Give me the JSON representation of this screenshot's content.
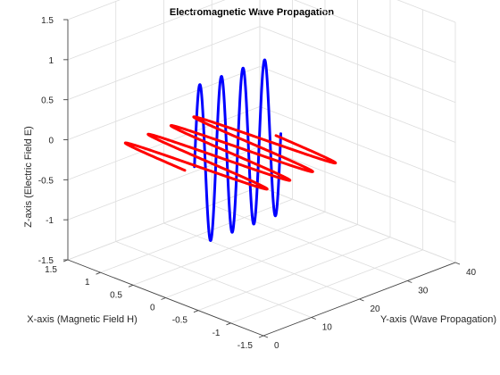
{
  "chart_data": {
    "type": "line",
    "projection": "3d",
    "title": "Electromagnetic Wave Propagation",
    "xlabel": "X-axis (Magnetic Field H)",
    "ylabel": "Y-axis (Wave Propagation)",
    "zlabel": "Z-axis (Electric Field E)",
    "xlim": [
      -1.5,
      1.5
    ],
    "ylim": [
      0,
      40
    ],
    "zlim": [
      -1.5,
      1.5
    ],
    "xticks": [
      "-1.5",
      "-1",
      "-0.5",
      "0",
      "0.5",
      "1",
      "1.5"
    ],
    "yticks": [
      "0",
      "10",
      "20",
      "30",
      "40"
    ],
    "zticks": [
      "-1.5",
      "-1",
      "-0.5",
      "0",
      "0.5",
      "1",
      "1.5"
    ],
    "grid": true,
    "series": [
      {
        "color": "#0000ff",
        "y_range": [
          6,
          24
        ],
        "cycles": 4,
        "x_value": 0,
        "z_amplitude": 1.0
      },
      {
        "color": "#ff0000",
        "y_range": [
          4,
          23
        ],
        "cycles": 4,
        "x_amplitude": 1.0,
        "z_value": 0
      }
    ]
  }
}
